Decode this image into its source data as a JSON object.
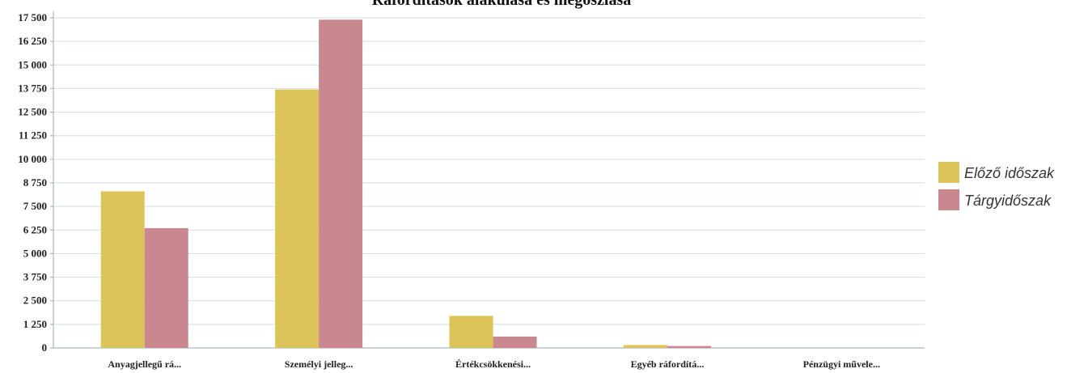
{
  "chart_data": {
    "type": "bar",
    "title": "Ráfordítások alakulása és megoszlása",
    "categories": [
      "Anyagjellegű rá...",
      "Személyi jelleg...",
      "Értékcsökkenési...",
      "Egyéb ráfordítá...",
      "Pénzügyi művele..."
    ],
    "series": [
      {
        "name": "Előző időszak",
        "values": [
          8300,
          13700,
          1700,
          150,
          0
        ],
        "color": "#dcc45a"
      },
      {
        "name": "Tárgyidőszak",
        "values": [
          6350,
          17400,
          600,
          100,
          0
        ],
        "color": "#c98790"
      }
    ],
    "xlabel": "",
    "ylabel": "",
    "ylim": [
      0,
      17500
    ],
    "yticks": [
      0,
      1250,
      2500,
      3750,
      5000,
      6250,
      7500,
      8750,
      10000,
      11250,
      12500,
      13750,
      15000,
      16250,
      17500
    ],
    "ytick_labels": [
      "0",
      "1 250",
      "2 500",
      "3 750",
      "5 000",
      "6 250",
      "7 500",
      "8 750",
      "10 000",
      "11 250",
      "12 500",
      "13 750",
      "15 000",
      "16 250",
      "17 500"
    ],
    "grid": true,
    "legend_position": "right"
  }
}
